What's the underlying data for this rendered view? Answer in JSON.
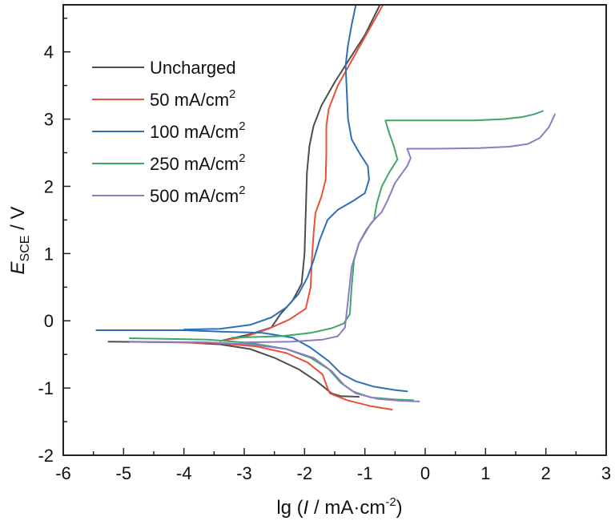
{
  "chart_data": {
    "type": "line",
    "title": "",
    "xlabel": "lg (I / mA·cm^-2)",
    "xlabel_parts": {
      "prefix": "lg (",
      "italic": "I",
      "middle": " / mA·cm",
      "sup": "-2",
      "suffix": ")"
    },
    "ylabel": "E_SCE / V",
    "ylabel_parts": {
      "italic": "E",
      "sub": "SCE",
      "suffix": " / V"
    },
    "xlim": [
      -6,
      3
    ],
    "ylim": [
      -2,
      4.7
    ],
    "xticks": [
      -6,
      -5,
      -4,
      -3,
      -2,
      -1,
      0,
      1,
      2,
      3
    ],
    "yticks": [
      -2,
      -1,
      0,
      1,
      2,
      3,
      4
    ],
    "grid": false,
    "legend_position": "top-left",
    "series": [
      {
        "name": "Uncharged",
        "label_main": "Uncharged",
        "label_sup": "",
        "color": "#4d4d4d",
        "branches": [
          [
            [
              -5.25,
              -0.31
            ],
            [
              -4.0,
              -0.32
            ],
            [
              -3.4,
              -0.35
            ],
            [
              -2.9,
              -0.42
            ],
            [
              -2.5,
              -0.55
            ],
            [
              -2.1,
              -0.72
            ],
            [
              -1.8,
              -0.9
            ],
            [
              -1.55,
              -1.08
            ],
            [
              -1.4,
              -1.12
            ],
            [
              -1.1,
              -1.13
            ]
          ],
          [
            [
              -3.4,
              -0.3
            ],
            [
              -2.9,
              -0.2
            ],
            [
              -2.55,
              -0.1
            ],
            [
              -2.4,
              0.1
            ],
            [
              -2.2,
              0.3
            ],
            [
              -2.05,
              0.55
            ],
            [
              -2.0,
              1.0
            ],
            [
              -1.98,
              1.6
            ],
            [
              -1.96,
              2.2
            ],
            [
              -1.92,
              2.6
            ],
            [
              -1.85,
              2.9
            ],
            [
              -1.72,
              3.2
            ],
            [
              -1.5,
              3.55
            ],
            [
              -1.25,
              3.9
            ],
            [
              -1.0,
              4.25
            ],
            [
              -0.75,
              4.7
            ]
          ]
        ]
      },
      {
        "name": "50 mA/cm2",
        "label_main": "50 mA/cm",
        "label_sup": "2",
        "color": "#e8503a",
        "branches": [
          [
            [
              -4.9,
              -0.31
            ],
            [
              -3.5,
              -0.33
            ],
            [
              -2.8,
              -0.38
            ],
            [
              -2.3,
              -0.48
            ],
            [
              -1.95,
              -0.62
            ],
            [
              -1.7,
              -0.8
            ],
            [
              -1.62,
              -1.0
            ],
            [
              -1.58,
              -1.08
            ],
            [
              -1.3,
              -1.18
            ],
            [
              -0.9,
              -1.27
            ],
            [
              -0.55,
              -1.32
            ]
          ],
          [
            [
              -3.4,
              -0.3
            ],
            [
              -3.0,
              -0.24
            ],
            [
              -2.6,
              -0.12
            ],
            [
              -2.25,
              0.02
            ],
            [
              -1.98,
              0.18
            ],
            [
              -1.9,
              0.5
            ],
            [
              -1.88,
              0.9
            ],
            [
              -1.85,
              1.3
            ],
            [
              -1.82,
              1.6
            ],
            [
              -1.72,
              1.85
            ],
            [
              -1.65,
              2.1
            ],
            [
              -1.64,
              2.5
            ],
            [
              -1.64,
              2.9
            ],
            [
              -1.6,
              3.15
            ],
            [
              -1.45,
              3.5
            ],
            [
              -1.2,
              3.9
            ],
            [
              -0.95,
              4.3
            ],
            [
              -0.7,
              4.7
            ]
          ]
        ]
      },
      {
        "name": "100 mA/cm2",
        "label_main": "100 mA/cm",
        "label_sup": "2",
        "color": "#2e6fb7",
        "branches": [
          [
            [
              -5.45,
              -0.14
            ],
            [
              -4.0,
              -0.14
            ],
            [
              -3.4,
              -0.16
            ],
            [
              -2.7,
              -0.18
            ],
            [
              -2.2,
              -0.25
            ],
            [
              -1.9,
              -0.4
            ],
            [
              -1.6,
              -0.6
            ],
            [
              -1.4,
              -0.78
            ],
            [
              -1.15,
              -0.9
            ],
            [
              -0.85,
              -0.98
            ],
            [
              -0.5,
              -1.03
            ],
            [
              -0.3,
              -1.05
            ]
          ],
          [
            [
              -4.0,
              -0.13
            ],
            [
              -3.4,
              -0.12
            ],
            [
              -2.9,
              -0.06
            ],
            [
              -2.55,
              0.05
            ],
            [
              -2.3,
              0.2
            ],
            [
              -2.1,
              0.4
            ],
            [
              -1.95,
              0.65
            ],
            [
              -1.85,
              0.9
            ],
            [
              -1.75,
              1.2
            ],
            [
              -1.62,
              1.5
            ],
            [
              -1.45,
              1.65
            ],
            [
              -1.2,
              1.78
            ],
            [
              -1.0,
              1.9
            ],
            [
              -0.93,
              2.1
            ],
            [
              -0.95,
              2.3
            ],
            [
              -1.08,
              2.48
            ],
            [
              -1.22,
              2.7
            ],
            [
              -1.28,
              3.0
            ],
            [
              -1.3,
              3.4
            ],
            [
              -1.32,
              3.8
            ],
            [
              -1.28,
              4.1
            ],
            [
              -1.22,
              4.4
            ],
            [
              -1.15,
              4.7
            ]
          ]
        ]
      },
      {
        "name": "250 mA/cm2",
        "label_main": "250 mA/cm",
        "label_sup": "2",
        "color": "#3fa66a",
        "branches": [
          [
            [
              -4.9,
              -0.26
            ],
            [
              -3.6,
              -0.28
            ],
            [
              -2.9,
              -0.33
            ],
            [
              -2.3,
              -0.42
            ],
            [
              -1.9,
              -0.55
            ],
            [
              -1.6,
              -0.72
            ],
            [
              -1.4,
              -0.92
            ],
            [
              -1.2,
              -1.05
            ],
            [
              -0.9,
              -1.14
            ],
            [
              -0.5,
              -1.17
            ],
            [
              -0.2,
              -1.18
            ]
          ],
          [
            [
              -3.2,
              -0.25
            ],
            [
              -2.4,
              -0.23
            ],
            [
              -1.9,
              -0.18
            ],
            [
              -1.55,
              -0.11
            ],
            [
              -1.35,
              -0.04
            ],
            [
              -1.25,
              0.1
            ],
            [
              -1.22,
              0.5
            ],
            [
              -1.18,
              0.9
            ],
            [
              -1.1,
              1.15
            ],
            [
              -0.98,
              1.35
            ],
            [
              -0.85,
              1.5
            ],
            [
              -0.8,
              1.75
            ],
            [
              -0.72,
              2.0
            ],
            [
              -0.6,
              2.2
            ],
            [
              -0.46,
              2.4
            ],
            [
              -0.52,
              2.6
            ],
            [
              -0.6,
              2.8
            ],
            [
              -0.66,
              2.98
            ],
            [
              0.0,
              2.98
            ],
            [
              0.8,
              2.98
            ],
            [
              1.3,
              3.0
            ],
            [
              1.6,
              3.03
            ],
            [
              1.8,
              3.07
            ],
            [
              1.95,
              3.12
            ]
          ]
        ]
      },
      {
        "name": "500 mA/cm2",
        "label_main": "500 mA/cm",
        "label_sup": "2",
        "color": "#8e7cc3",
        "branches": [
          [
            [
              -4.9,
              -0.31
            ],
            [
              -3.6,
              -0.32
            ],
            [
              -2.9,
              -0.35
            ],
            [
              -2.3,
              -0.42
            ],
            [
              -1.85,
              -0.55
            ],
            [
              -1.55,
              -0.75
            ],
            [
              -1.35,
              -0.95
            ],
            [
              -1.15,
              -1.08
            ],
            [
              -0.8,
              -1.16
            ],
            [
              -0.4,
              -1.19
            ],
            [
              -0.1,
              -1.2
            ]
          ],
          [
            [
              -3.0,
              -0.32
            ],
            [
              -2.2,
              -0.31
            ],
            [
              -1.7,
              -0.28
            ],
            [
              -1.45,
              -0.23
            ],
            [
              -1.33,
              -0.1
            ],
            [
              -1.28,
              0.3
            ],
            [
              -1.22,
              0.8
            ],
            [
              -1.1,
              1.15
            ],
            [
              -0.9,
              1.45
            ],
            [
              -0.72,
              1.62
            ],
            [
              -0.62,
              1.8
            ],
            [
              -0.5,
              2.05
            ],
            [
              -0.3,
              2.3
            ],
            [
              -0.24,
              2.42
            ],
            [
              -0.3,
              2.56
            ],
            [
              0.2,
              2.56
            ],
            [
              0.9,
              2.57
            ],
            [
              1.4,
              2.59
            ],
            [
              1.7,
              2.63
            ],
            [
              1.9,
              2.72
            ],
            [
              2.05,
              2.88
            ],
            [
              2.15,
              3.07
            ]
          ]
        ]
      }
    ]
  }
}
